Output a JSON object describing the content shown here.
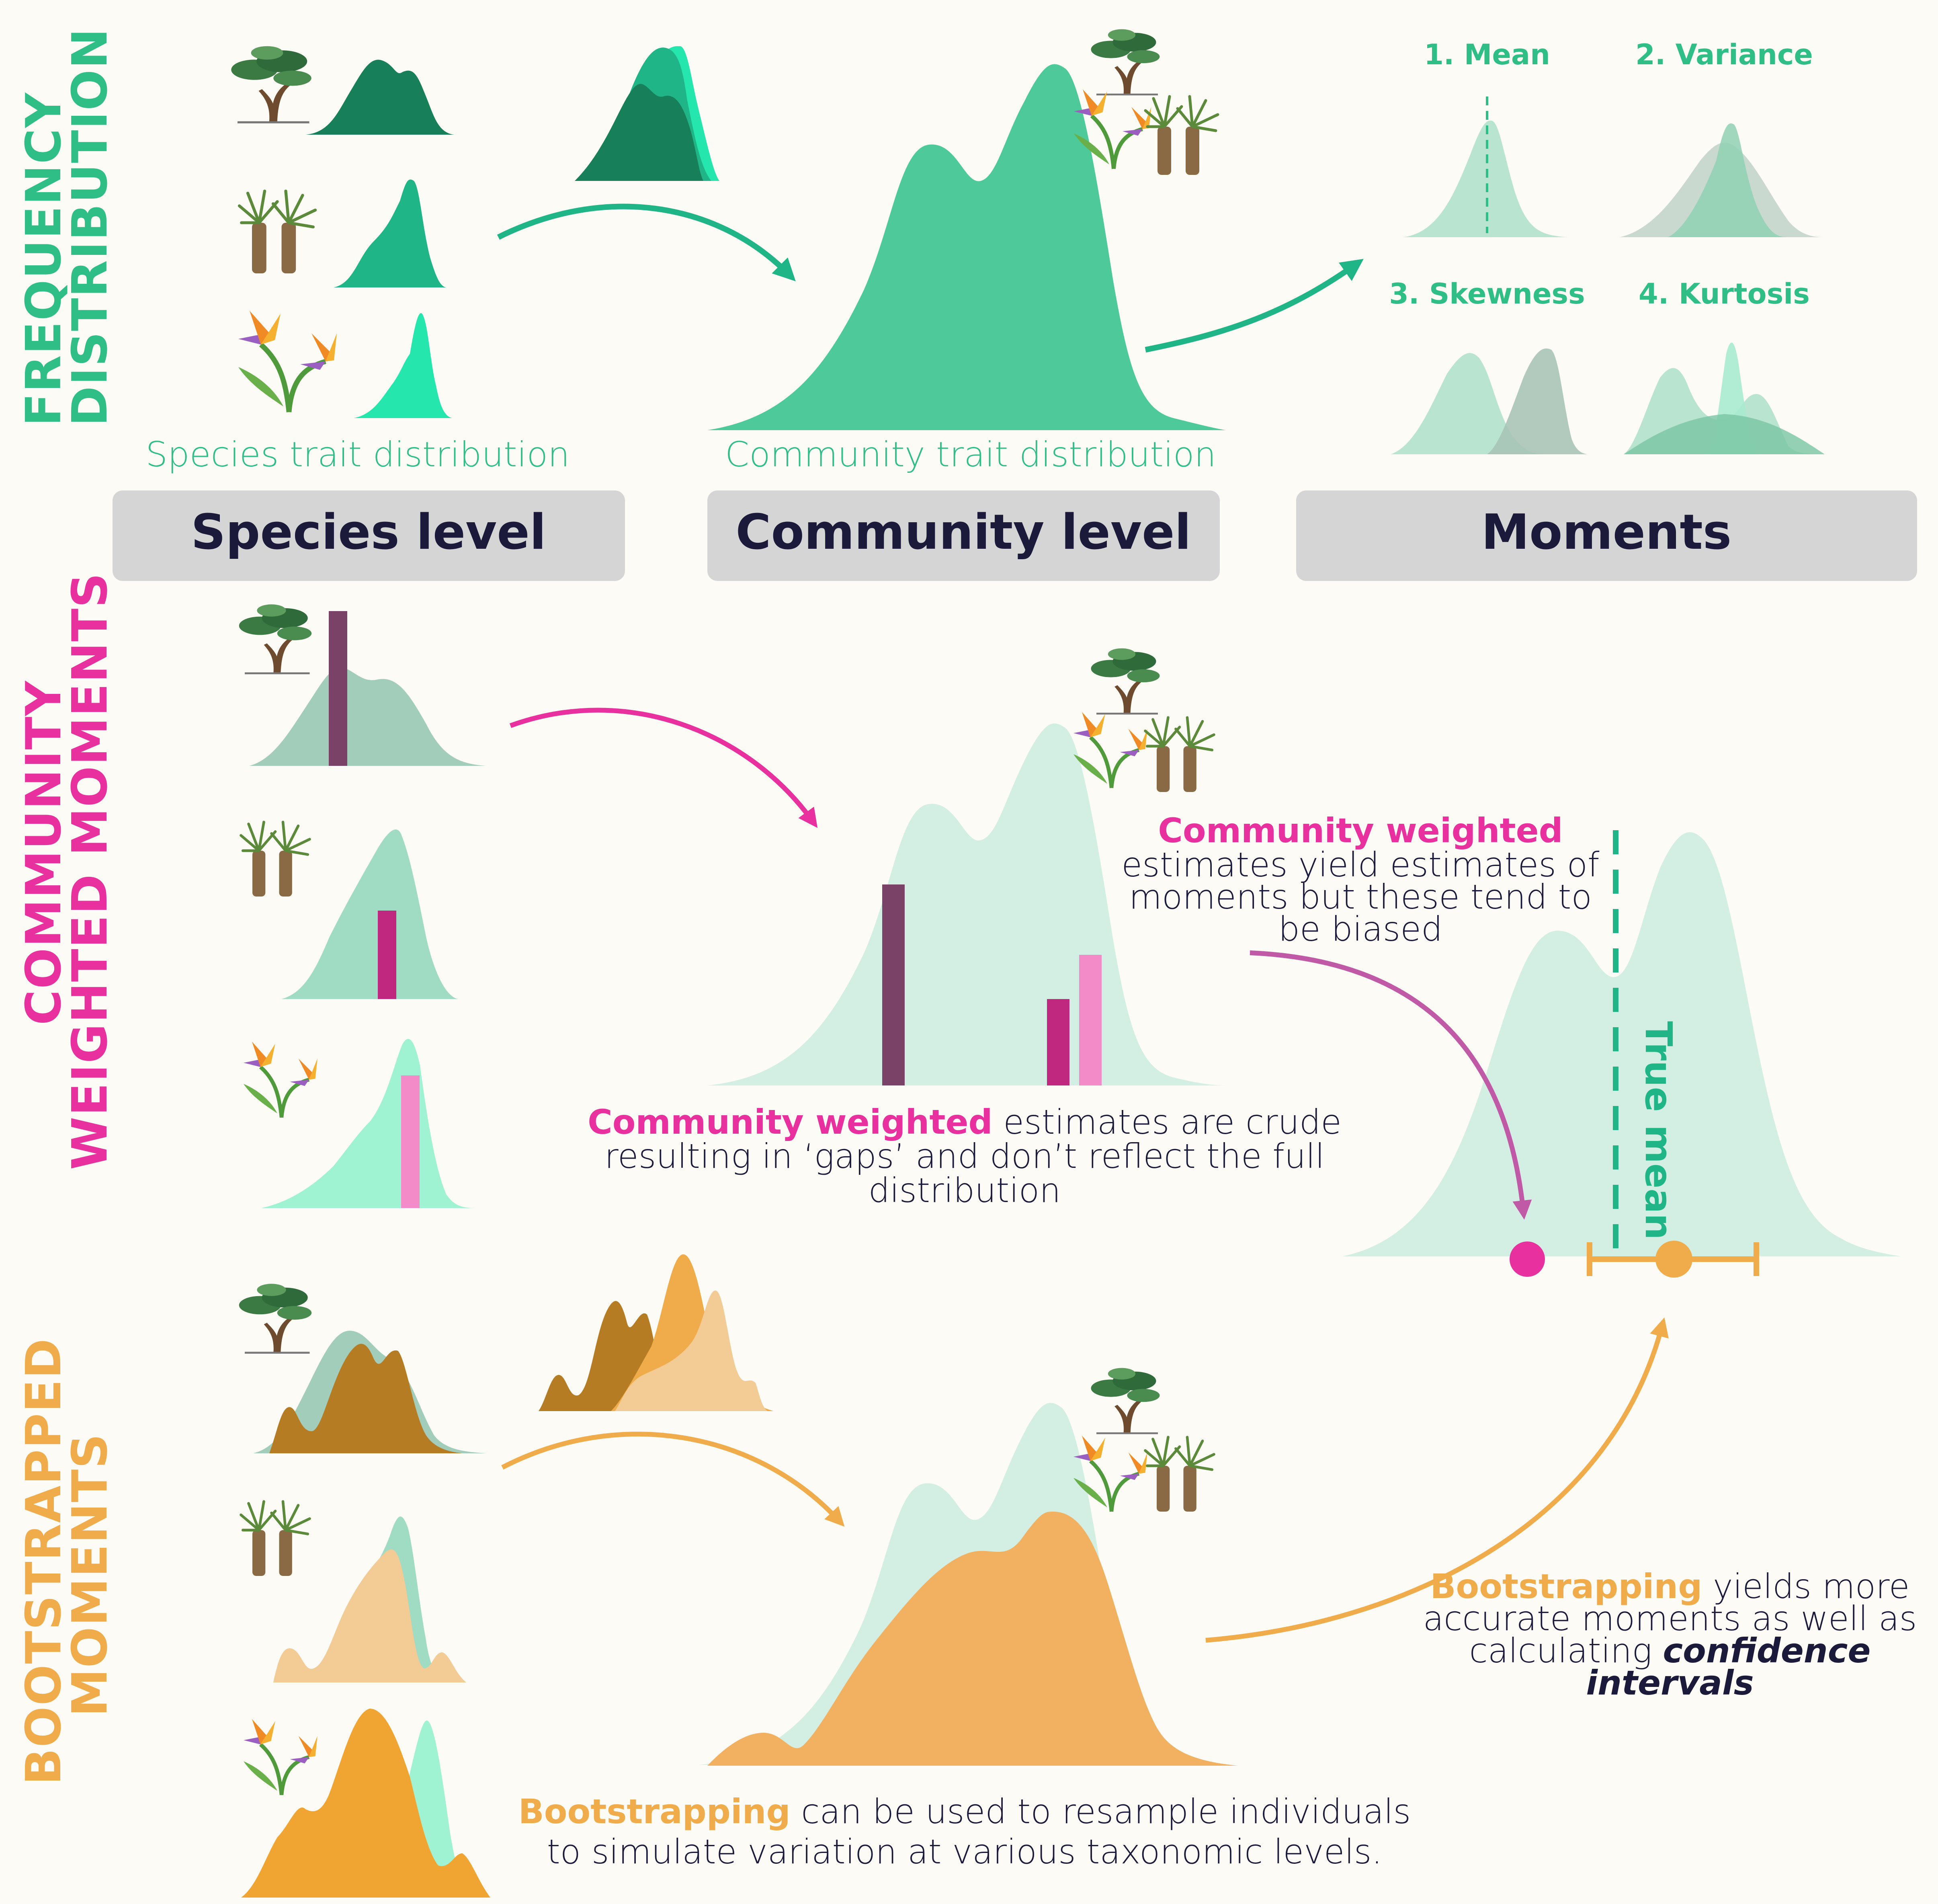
{
  "colors": {
    "background": "#fcfbf5",
    "green_text": "#2fbf86",
    "community_green": "#4dc99a",
    "dark_green": "#177f5a",
    "mid_green": "#1fb587",
    "bright_green": "#25e6ac",
    "pale_green": "#d3efe3",
    "magenta": "#e8309e",
    "plum": "#7b4267",
    "pink": "#f38bc8",
    "orange": "#f0ac4a",
    "orange_light": "#f2cb95",
    "brown": "#b67c24",
    "panel_gray": "#d5d5d6",
    "dark_text": "#1c1a3a"
  },
  "row_titles": {
    "frequency": [
      "FREQUENCY",
      "DISTRIBUTION"
    ],
    "weighted": [
      "COMMUNITY",
      "WEIGHTED MOMENTS"
    ],
    "bootstrap": [
      "BOOTSTRAPPED",
      "MOMENTS"
    ]
  },
  "top": {
    "species_caption": "Species trait distribution",
    "community_caption": "Community trait distribution"
  },
  "level_panels": {
    "species": "Species level",
    "community": "Community level",
    "moments": "Moments"
  },
  "moments": [
    "1. Mean",
    "2. Variance",
    "3. Skewness",
    "4. Kurtosis"
  ],
  "weighted_text": {
    "crude_highlight": "Community weighted",
    "crude_lines": [
      " estimates are crude",
      "resulting in ‘gaps’ and don’t reflect the full",
      "distribution"
    ],
    "biased_highlight": "Community weighted",
    "biased_lines": [
      "estimates yield estimates of",
      "moments but these tend to",
      "be biased"
    ]
  },
  "true_mean_label": "True mean",
  "bootstrap_text": {
    "resample_highlight": "Bootstrapping",
    "resample_lines": [
      " can be used to resample individuals",
      "to simulate variation at various taxonomic levels."
    ],
    "accurate_highlight": "Bootstrapping",
    "accurate_lines": [
      " yields more",
      "accurate moments as well as",
      "calculating "
    ],
    "accurate_italic": [
      "confidence",
      "intervals"
    ]
  },
  "icons": [
    "bonsai-tree-icon",
    "palm-trees-icon",
    "bird-of-paradise-icon"
  ]
}
